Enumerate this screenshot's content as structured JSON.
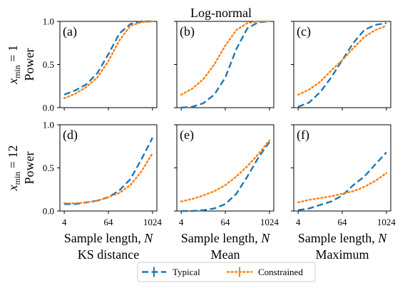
{
  "figure": {
    "title": "Log-normal",
    "row_labels": [
      {
        "sub": "min",
        "rest": " = 1",
        "second": "Power"
      },
      {
        "sub": "min",
        "rest": " = 12",
        "second": "Power"
      }
    ],
    "column_labels": [
      "KS distance",
      "Mean",
      "Maximum"
    ],
    "xlabel_prefix": "Sample length, ",
    "xlabel_var": "N",
    "row_var": "x"
  },
  "legend": {
    "items": [
      {
        "name": "Typical",
        "color": "#1f77b4",
        "style": "dashed"
      },
      {
        "name": "Constrained",
        "color": "#ff7f0e",
        "style": "dotted"
      }
    ]
  },
  "chart_data": {
    "type": "line",
    "x_scale": "log2",
    "xlim": [
      4,
      1024
    ],
    "ylim": [
      0,
      1
    ],
    "x_ticks": [
      4,
      64,
      1024
    ],
    "y_ticks": [
      0.0,
      0.5,
      1.0
    ],
    "y_tick_labels": [
      "0.0",
      "0.5",
      "1.0"
    ],
    "colors": {
      "typical": "#1f77b4",
      "constrained": "#ff7f0e"
    },
    "x": [
      4,
      8,
      16,
      32,
      64,
      128,
      256,
      512,
      1024
    ],
    "panels": [
      {
        "label": "(a)",
        "row": 0,
        "col": 0,
        "series": [
          {
            "name": "Typical",
            "values": [
              0.15,
              0.2,
              0.27,
              0.4,
              0.62,
              0.86,
              0.97,
              1.0,
              1.0
            ]
          },
          {
            "name": "Constrained",
            "values": [
              0.11,
              0.16,
              0.24,
              0.35,
              0.54,
              0.78,
              0.95,
              0.99,
              1.0
            ]
          }
        ]
      },
      {
        "label": "(b)",
        "row": 0,
        "col": 1,
        "series": [
          {
            "name": "Typical",
            "values": [
              0.0,
              0.01,
              0.05,
              0.15,
              0.35,
              0.68,
              0.92,
              0.99,
              1.0
            ]
          },
          {
            "name": "Constrained",
            "values": [
              0.15,
              0.22,
              0.33,
              0.5,
              0.72,
              0.9,
              0.98,
              1.0,
              1.0
            ]
          }
        ]
      },
      {
        "label": "(c)",
        "row": 0,
        "col": 2,
        "series": [
          {
            "name": "Typical",
            "values": [
              0.01,
              0.06,
              0.18,
              0.35,
              0.55,
              0.75,
              0.9,
              0.96,
              0.98
            ]
          },
          {
            "name": "Constrained",
            "values": [
              0.15,
              0.21,
              0.3,
              0.43,
              0.55,
              0.69,
              0.82,
              0.9,
              0.95
            ]
          }
        ]
      },
      {
        "label": "(d)",
        "row": 1,
        "col": 0,
        "series": [
          {
            "name": "Typical",
            "values": [
              0.08,
              0.08,
              0.1,
              0.12,
              0.16,
              0.24,
              0.37,
              0.6,
              0.85
            ]
          },
          {
            "name": "Constrained",
            "values": [
              0.09,
              0.09,
              0.1,
              0.12,
              0.16,
              0.21,
              0.3,
              0.46,
              0.67
            ]
          }
        ]
      },
      {
        "label": "(e)",
        "row": 1,
        "col": 1,
        "series": [
          {
            "name": "Typical",
            "values": [
              0.0,
              0.0,
              0.01,
              0.03,
              0.08,
              0.2,
              0.4,
              0.62,
              0.8
            ]
          },
          {
            "name": "Constrained",
            "values": [
              0.11,
              0.14,
              0.18,
              0.23,
              0.3,
              0.4,
              0.52,
              0.66,
              0.82
            ]
          }
        ]
      },
      {
        "label": "(f)",
        "row": 1,
        "col": 2,
        "series": [
          {
            "name": "Typical",
            "values": [
              0.01,
              0.03,
              0.07,
              0.11,
              0.18,
              0.3,
              0.4,
              0.54,
              0.68
            ]
          },
          {
            "name": "Constrained",
            "values": [
              0.1,
              0.13,
              0.15,
              0.17,
              0.2,
              0.23,
              0.28,
              0.35,
              0.44
            ]
          }
        ]
      }
    ]
  }
}
